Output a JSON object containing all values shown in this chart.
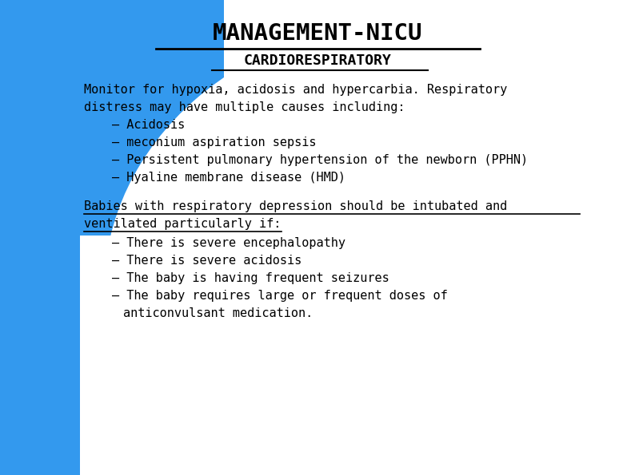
{
  "title": "MANAGEMENT-NICU",
  "subtitle": "CARDIORESPIRATORY",
  "bg_blue": "#3399ee",
  "bg_white": "#ffffff",
  "title_color": "#000000",
  "subtitle_color": "#000000",
  "text_color": "#000000",
  "para1_line1": "Monitor for hypoxia, acidosis and hypercarbia. Respiratory",
  "para1_line2": "distress may have multiple causes including:",
  "bullets1": [
    "Acidosis",
    "meconium aspiration sepsis",
    "Persistent pulmonary hypertension of the newborn (PPHN)",
    "Hyaline membrane disease (HMD)"
  ],
  "para2_line1": "Babies with respiratory depression should be intubated and",
  "para2_line2": "ventilated particularly if:",
  "bullets2": [
    "There is severe encephalopathy",
    "There is severe acidosis",
    "The baby is having frequent seizures",
    "The baby requires large or frequent doses of",
    "anticonvulsant medication."
  ],
  "font_family": "monospace",
  "title_fontsize": 21,
  "subtitle_fontsize": 13,
  "body_fontsize": 11
}
